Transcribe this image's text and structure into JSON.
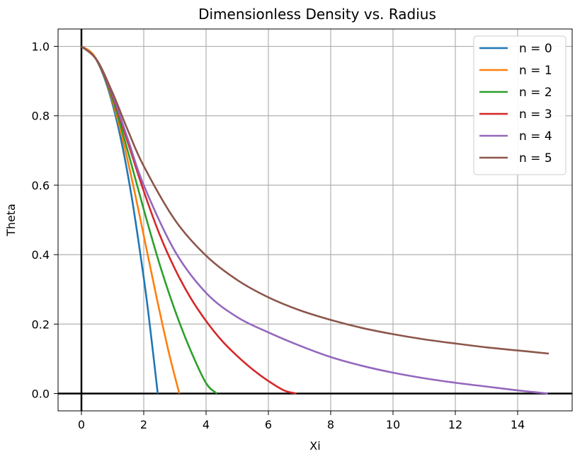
{
  "chart_data": {
    "type": "line",
    "title": "Dimensionless Density vs. Radius",
    "xlabel": "Xi",
    "ylabel": "Theta",
    "xlim": [
      -0.75,
      15.75
    ],
    "ylim": [
      -0.05,
      1.05
    ],
    "xticks": [
      0,
      2,
      4,
      6,
      8,
      10,
      12,
      14
    ],
    "yticks": [
      0.0,
      0.2,
      0.4,
      0.6,
      0.8,
      1.0
    ],
    "xtick_labels": [
      "0",
      "2",
      "4",
      "6",
      "8",
      "10",
      "12",
      "14"
    ],
    "ytick_labels": [
      "0.0",
      "0.2",
      "0.4",
      "0.6",
      "0.8",
      "1.0"
    ],
    "grid": true,
    "legend_position": "top-right",
    "series": [
      {
        "name": "n = 0",
        "color": "#1f77b4",
        "x": [
          0,
          0.4,
          0.8,
          1.2,
          1.6,
          2.0,
          2.2,
          2.449
        ],
        "y": [
          1.0,
          0.973,
          0.893,
          0.76,
          0.573,
          0.333,
          0.193,
          0.0
        ]
      },
      {
        "name": "n = 1",
        "color": "#ff7f0e",
        "x": [
          0,
          0.4,
          0.8,
          1.2,
          1.6,
          2.0,
          2.4,
          2.8,
          3.1416
        ],
        "y": [
          1.0,
          0.974,
          0.897,
          0.777,
          0.625,
          0.455,
          0.282,
          0.12,
          0.0
        ]
      },
      {
        "name": "n = 2",
        "color": "#2ca02c",
        "x": [
          0,
          0.5,
          1.0,
          1.5,
          2.0,
          2.5,
          3.0,
          3.5,
          4.0,
          4.35
        ],
        "y": [
          1.0,
          0.959,
          0.848,
          0.694,
          0.53,
          0.375,
          0.24,
          0.125,
          0.03,
          0.0
        ]
      },
      {
        "name": "n = 3",
        "color": "#d62728",
        "x": [
          0,
          0.5,
          1.0,
          1.5,
          2.0,
          2.5,
          3.0,
          3.5,
          4.0,
          4.5,
          5.0,
          5.5,
          6.0,
          6.5,
          6.897
        ],
        "y": [
          1.0,
          0.959,
          0.855,
          0.72,
          0.583,
          0.46,
          0.359,
          0.276,
          0.209,
          0.153,
          0.108,
          0.069,
          0.036,
          0.009,
          0.0
        ]
      },
      {
        "name": "n = 4",
        "color": "#9467bd",
        "x": [
          0,
          0.5,
          1.0,
          1.5,
          2.0,
          3.0,
          4.0,
          5.0,
          6.0,
          7.0,
          8.0,
          9.0,
          10.0,
          11.0,
          12.0,
          13.0,
          14.0,
          14.97
        ],
        "y": [
          1.0,
          0.96,
          0.86,
          0.73,
          0.6,
          0.41,
          0.29,
          0.22,
          0.176,
          0.138,
          0.105,
          0.08,
          0.06,
          0.044,
          0.031,
          0.02,
          0.009,
          0.0
        ]
      },
      {
        "name": "n = 5",
        "color": "#8c564b",
        "x": [
          0,
          0.5,
          1.0,
          1.5,
          2.0,
          3.0,
          4.0,
          5.0,
          6.0,
          7.0,
          8.0,
          9.0,
          10.0,
          11.0,
          12.0,
          13.0,
          14.0,
          15.0
        ],
        "y": [
          1.0,
          0.96,
          0.866,
          0.756,
          0.655,
          0.5,
          0.397,
          0.327,
          0.277,
          0.24,
          0.212,
          0.189,
          0.171,
          0.156,
          0.144,
          0.133,
          0.124,
          0.115
        ]
      }
    ],
    "reference_lines": {
      "x": 0,
      "y": 0,
      "color": "#000000"
    }
  }
}
